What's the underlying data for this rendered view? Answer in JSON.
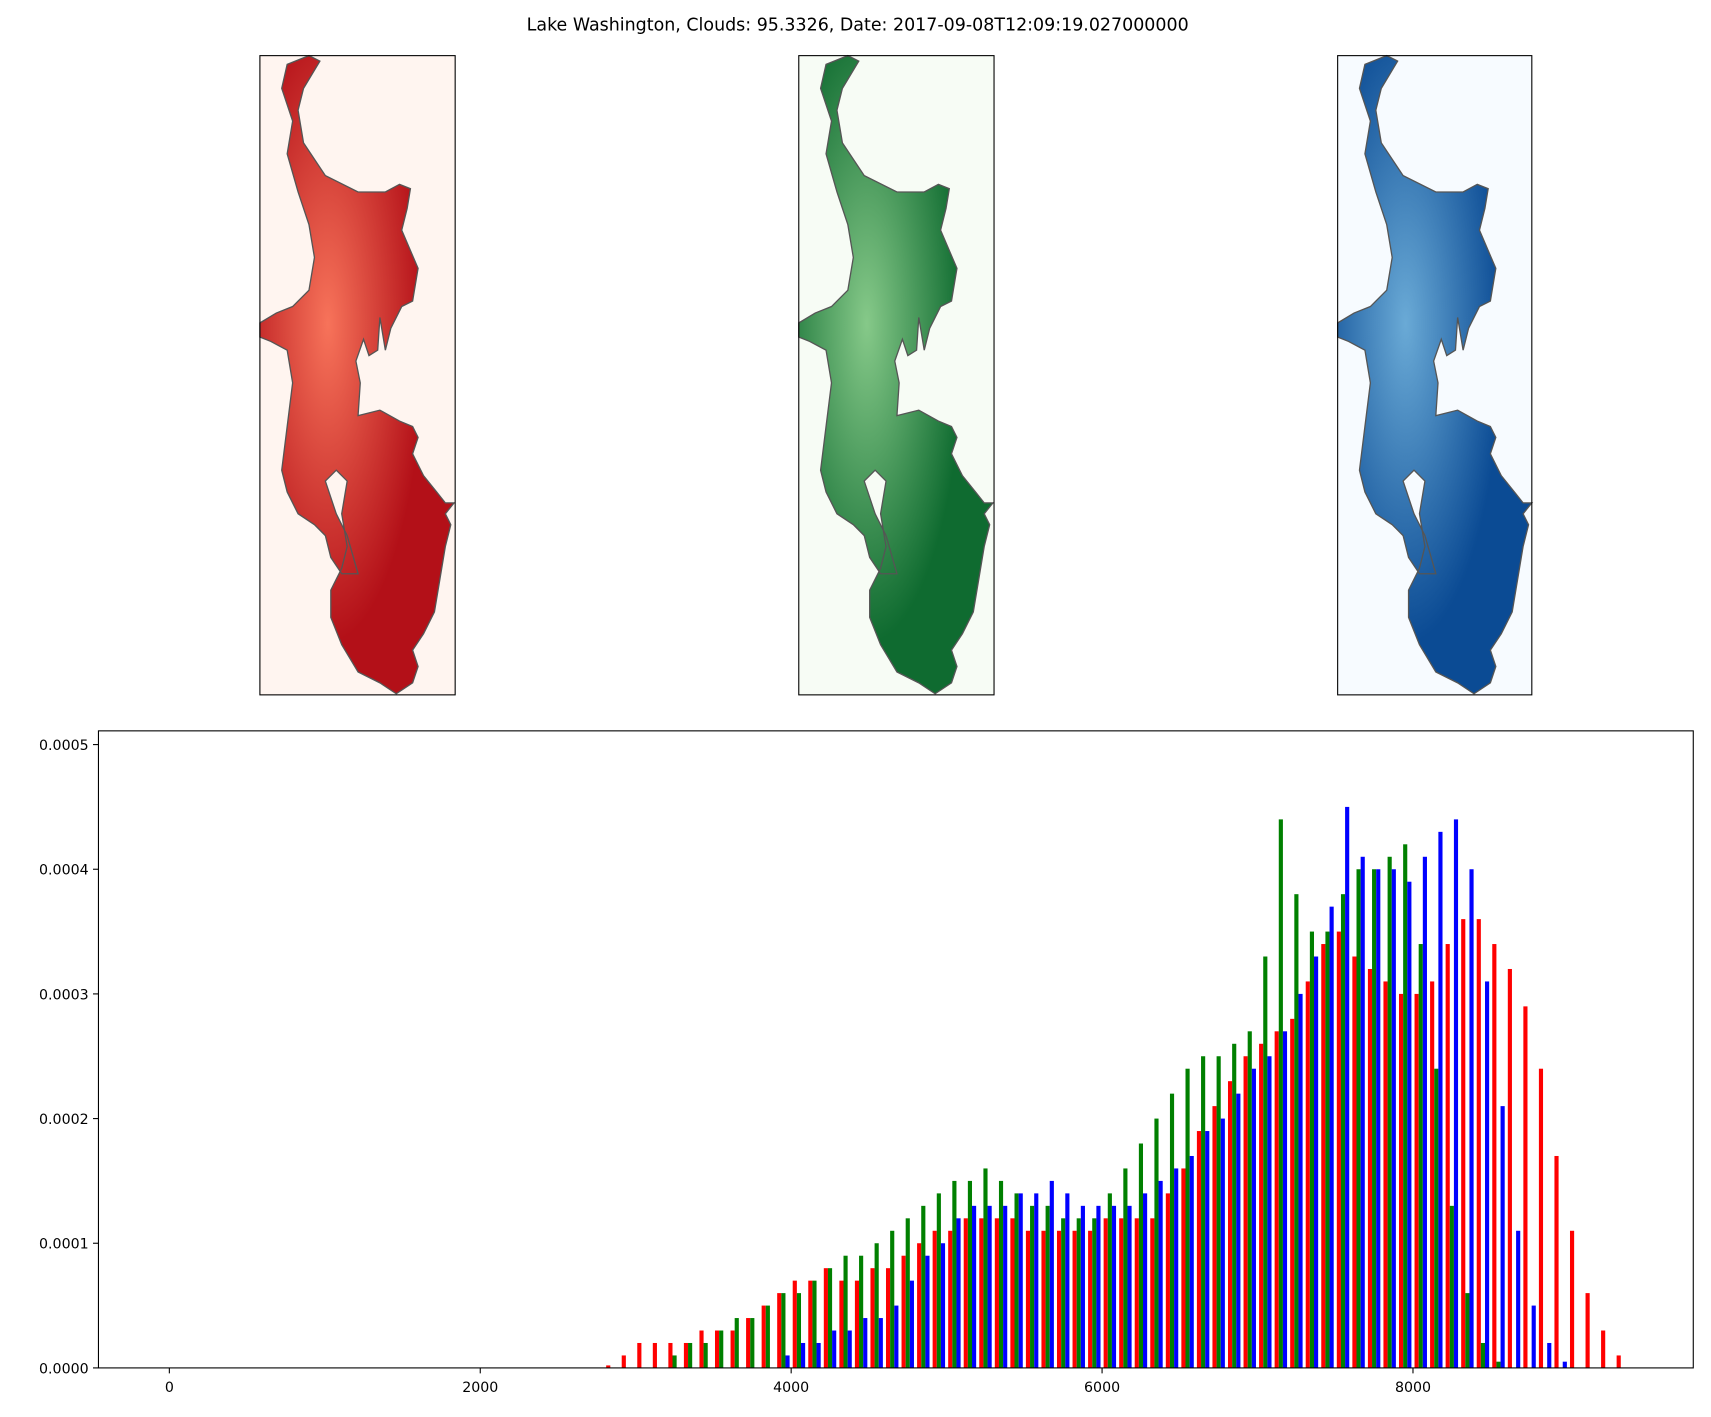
{
  "chart_data": {
    "type": "histogram",
    "title": "Lake Washington, Clouds: 95.3326, Date: 2017-09-08T12:09:19.027000000",
    "bins": [
      2800,
      2900,
      3000,
      3100,
      3200,
      3300,
      3400,
      3500,
      3600,
      3700,
      3800,
      3900,
      4000,
      4100,
      4200,
      4300,
      4400,
      4500,
      4600,
      4700,
      4800,
      4900,
      5000,
      5100,
      5200,
      5300,
      5400,
      5500,
      5600,
      5700,
      5800,
      5900,
      6000,
      6100,
      6200,
      6300,
      6400,
      6500,
      6600,
      6700,
      6800,
      6900,
      7000,
      7100,
      7200,
      7300,
      7400,
      7500,
      7600,
      7700,
      7800,
      7900,
      8000,
      8100,
      8200,
      8300,
      8400,
      8500,
      8600,
      8700,
      8800,
      8900,
      9000,
      9100,
      9200,
      9300,
      9400
    ],
    "series": [
      {
        "color": "#ff0000",
        "values": [
          2e-06,
          1e-05,
          2e-05,
          2e-05,
          2e-05,
          2e-05,
          3e-05,
          3e-05,
          3e-05,
          4e-05,
          5e-05,
          6e-05,
          7e-05,
          7e-05,
          8e-05,
          7e-05,
          7e-05,
          8e-05,
          8e-05,
          9e-05,
          0.0001,
          0.00011,
          0.00011,
          0.00012,
          0.00012,
          0.00012,
          0.00012,
          0.00011,
          0.00011,
          0.00011,
          0.00011,
          0.00011,
          0.00012,
          0.00012,
          0.00012,
          0.00012,
          0.00014,
          0.00016,
          0.00019,
          0.00021,
          0.00023,
          0.00025,
          0.00026,
          0.00027,
          0.00028,
          0.00031,
          0.00034,
          0.00035,
          0.00033,
          0.00032,
          0.00031,
          0.0003,
          0.0003,
          0.00031,
          0.00034,
          0.00036,
          0.00036,
          0.00034,
          0.00032,
          0.00029,
          0.00024,
          0.00017,
          0.00011,
          6e-05,
          3e-05,
          1e-05
        ]
      },
      {
        "color": "#008000",
        "values": [
          0,
          0,
          0,
          0,
          1e-05,
          2e-05,
          2e-05,
          3e-05,
          4e-05,
          4e-05,
          5e-05,
          6e-05,
          6e-05,
          7e-05,
          8e-05,
          9e-05,
          9e-05,
          0.0001,
          0.00011,
          0.00012,
          0.00013,
          0.00014,
          0.00015,
          0.00015,
          0.00016,
          0.00015,
          0.00014,
          0.00013,
          0.00013,
          0.00012,
          0.00012,
          0.00012,
          0.00014,
          0.00016,
          0.00018,
          0.0002,
          0.00022,
          0.00024,
          0.00025,
          0.00025,
          0.00026,
          0.00027,
          0.00033,
          0.00044,
          0.00038,
          0.00035,
          0.00035,
          0.00038,
          0.0004,
          0.0004,
          0.00041,
          0.00042,
          0.00034,
          0.00024,
          0.00013,
          6e-05,
          2e-05,
          5e-06,
          0,
          0,
          0,
          0,
          0,
          0,
          0,
          0
        ]
      },
      {
        "color": "#0000ff",
        "values": [
          0,
          0,
          0,
          0,
          0,
          0,
          0,
          0,
          0,
          0,
          0,
          1e-05,
          2e-05,
          2e-05,
          3e-05,
          3e-05,
          4e-05,
          4e-05,
          5e-05,
          7e-05,
          9e-05,
          0.0001,
          0.00012,
          0.00013,
          0.00013,
          0.00013,
          0.00014,
          0.00014,
          0.00015,
          0.00014,
          0.00013,
          0.00013,
          0.00013,
          0.00013,
          0.00014,
          0.00015,
          0.00016,
          0.00017,
          0.00019,
          0.0002,
          0.00022,
          0.00024,
          0.00025,
          0.00027,
          0.0003,
          0.00033,
          0.00037,
          0.00045,
          0.00041,
          0.0004,
          0.0004,
          0.00039,
          0.00041,
          0.00043,
          0.00044,
          0.0004,
          0.00031,
          0.00021,
          0.00011,
          5e-05,
          2e-05,
          5e-06,
          0,
          0,
          0,
          0
        ]
      }
    ],
    "xlim": [
      -456,
      9803
    ],
    "xticks": [
      0,
      2000,
      4000,
      6000,
      8000
    ],
    "ylim": [
      0,
      0.000511
    ],
    "yticks": [
      {
        "value": 0,
        "label": "0.0000"
      },
      {
        "value": 0.0001,
        "label": "0.0001"
      },
      {
        "value": 0.0002,
        "label": "0.0002"
      },
      {
        "value": 0.0003,
        "label": "0.0003"
      },
      {
        "value": 0.0004,
        "label": "0.0004"
      },
      {
        "value": 0.0005,
        "label": "0.0005"
      }
    ]
  }
}
